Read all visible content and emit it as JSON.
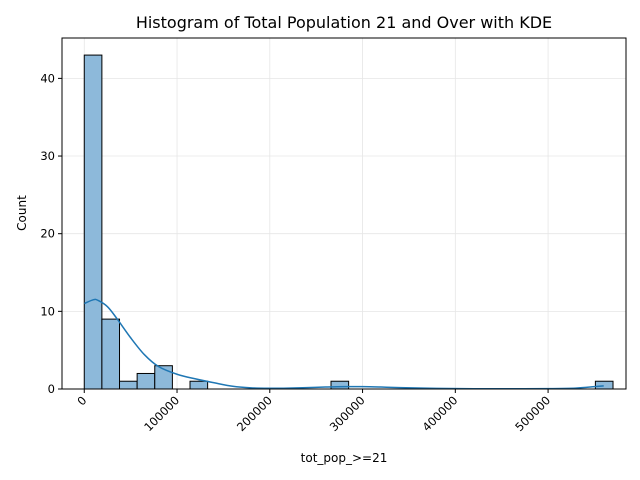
{
  "chart_data": {
    "type": "bar",
    "title": "Histogram of Total Population 21 and Over with KDE",
    "xlabel": "tot_pop_>=21",
    "ylabel": "Count",
    "xlim": [
      -24000,
      584000
    ],
    "ylim": [
      0,
      45.2
    ],
    "grid": true,
    "bin_edges": [
      0,
      19000,
      38000,
      57000,
      76000,
      95000,
      114000,
      133000,
      152000,
      171000,
      190000,
      209000,
      228000,
      247000,
      266000,
      285000,
      304000,
      323000,
      342000,
      361000,
      380000,
      399000,
      418000,
      437000,
      456000,
      475000,
      494000,
      513000,
      532000,
      551000,
      570000
    ],
    "counts": [
      43,
      9,
      1,
      2,
      3,
      0,
      1,
      0,
      0,
      0,
      0,
      0,
      0,
      0,
      1,
      0,
      0,
      0,
      0,
      0,
      0,
      0,
      0,
      0,
      0,
      0,
      0,
      0,
      0,
      1
    ],
    "x_ticks": [
      0,
      100000,
      200000,
      300000,
      400000,
      500000
    ],
    "x_tick_labels": [
      "0",
      "100000",
      "200000",
      "300000",
      "400000",
      "500000"
    ],
    "y_ticks": [
      0,
      10,
      20,
      30,
      40
    ],
    "y_tick_labels": [
      "0",
      "10",
      "20",
      "30",
      "40"
    ],
    "kde": {
      "x": [
        0,
        10000,
        15000,
        25000,
        35000,
        50000,
        65000,
        80000,
        100000,
        120000,
        140000,
        160000,
        180000,
        200000,
        220000,
        240000,
        260000,
        280000,
        300000,
        320000,
        340000,
        380000,
        420000,
        460000,
        500000,
        530000,
        550000,
        560000
      ],
      "y": [
        11.0,
        11.5,
        11.4,
        10.6,
        9.1,
        6.6,
        4.4,
        2.9,
        1.9,
        1.3,
        0.8,
        0.35,
        0.15,
        0.1,
        0.12,
        0.18,
        0.25,
        0.3,
        0.3,
        0.25,
        0.18,
        0.08,
        0.04,
        0.03,
        0.05,
        0.12,
        0.3,
        0.4
      ]
    },
    "colors": {
      "bar_fill": "#8db9da",
      "bar_edge": "#000000",
      "kde_line": "#1f77b4",
      "grid": "#e6e6e6"
    }
  }
}
